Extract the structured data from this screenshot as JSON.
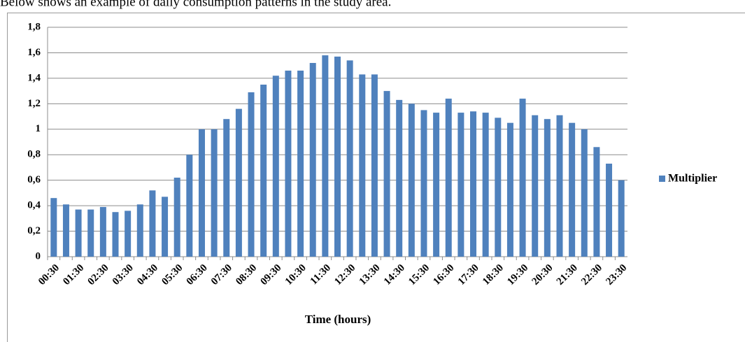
{
  "caption": "Below shows an example of daily consumption patterns in the study area.",
  "chart_data": {
    "type": "bar",
    "x_label": "Time (hours)",
    "categories": [
      "00:30",
      null,
      "01:30",
      null,
      "02:30",
      null,
      "03:30",
      null,
      "04:30",
      null,
      "05:30",
      null,
      "06:30",
      null,
      "07:30",
      null,
      "08:30",
      null,
      "09:30",
      null,
      "10:30",
      null,
      "11:30",
      null,
      "12:30",
      null,
      "13:30",
      null,
      "14:30",
      null,
      "15:30",
      null,
      "16:30",
      null,
      "17:30",
      null,
      "18:30",
      null,
      "19:30",
      null,
      "20:30",
      null,
      "21:30",
      null,
      "22:30",
      null,
      "23:30"
    ],
    "series": [
      {
        "name": "Multiplier",
        "color": "#4f81bd",
        "values": [
          0.46,
          0.41,
          0.37,
          0.37,
          0.39,
          0.35,
          0.36,
          0.41,
          0.52,
          0.47,
          0.62,
          0.8,
          1.0,
          1.0,
          1.08,
          1.16,
          1.29,
          1.35,
          1.42,
          1.46,
          1.46,
          1.52,
          1.58,
          1.57,
          1.54,
          1.43,
          1.43,
          1.3,
          1.23,
          1.2,
          1.15,
          1.13,
          1.24,
          1.13,
          1.14,
          1.13,
          1.09,
          1.05,
          1.24,
          1.11,
          1.08,
          1.11,
          1.05,
          1.0,
          0.86,
          0.73,
          0.6
        ]
      }
    ],
    "ylim": [
      0,
      1.8
    ],
    "yticks": [
      0,
      {
        "value": 0.2,
        "label": "0,2"
      },
      {
        "value": 0.4,
        "label": "0,4"
      },
      {
        "value": 0.6,
        "label": "0,6"
      },
      {
        "value": 0.8,
        "label": "0,8"
      },
      1,
      {
        "value": 1.2,
        "label": "1,2"
      },
      {
        "value": 1.4,
        "label": "1,4"
      },
      {
        "value": 1.6,
        "label": "1,6"
      },
      {
        "value": 1.8,
        "label": "1,8"
      }
    ],
    "grid": true,
    "legend": "right"
  }
}
